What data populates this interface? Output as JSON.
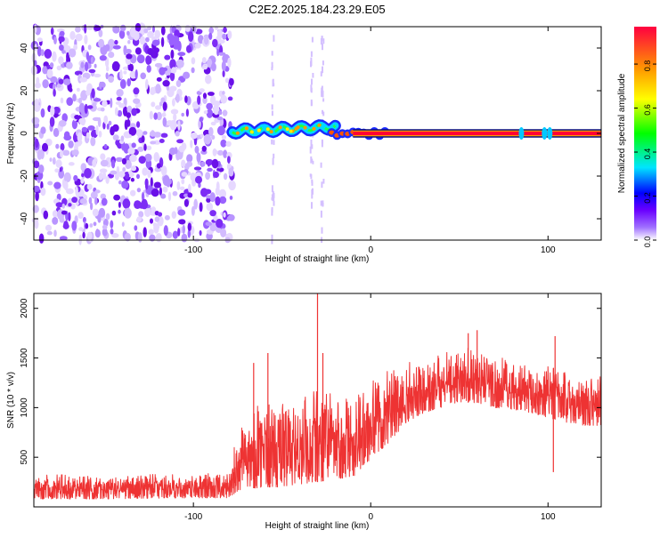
{
  "title": "C2E2.2025.184.23.29.E05",
  "chart_data": [
    {
      "type": "heatmap",
      "xlabel": "Height of straight line (km)",
      "ylabel": "Frequency (Hz)",
      "xlim": [
        -190,
        130
      ],
      "ylim": [
        -50,
        50
      ],
      "x_ticks": [
        -100,
        0,
        100
      ],
      "y_ticks": [
        -40,
        -20,
        0,
        20,
        40
      ],
      "colorbar": {
        "label": "Normalized spectral amplitude",
        "range": [
          0,
          0.97
        ],
        "ticks": [
          0.0,
          0.2,
          0.4,
          0.6,
          0.8
        ],
        "colors": [
          "#ffffff",
          "#7b00ff",
          "#0000ff",
          "#00ffff",
          "#00ff00",
          "#ffff00",
          "#ff8800",
          "#ff0033"
        ]
      },
      "regions": [
        {
          "x_range": [
            -190,
            -78
          ],
          "description": "broadband noise",
          "amplitude_range": [
            0.0,
            0.2
          ]
        },
        {
          "x_range": [
            -78,
            -20
          ],
          "center_frequency": [
            1,
            3
          ],
          "amplitude_range": [
            0.2,
            0.6
          ]
        },
        {
          "x_range": [
            -20,
            130
          ],
          "center_frequency": [
            0,
            0
          ],
          "amplitude_range": [
            0.9,
            0.97
          ]
        }
      ]
    },
    {
      "type": "line",
      "xlabel": "Height of straight line (km)",
      "ylabel": "SNR (10 * v/v)",
      "xlim": [
        -190,
        130
      ],
      "ylim": [
        0,
        2150
      ],
      "x_ticks": [
        -100,
        0,
        100
      ],
      "y_ticks": [
        500,
        1000,
        1500,
        2000
      ],
      "color": "#ee3333",
      "envelope": {
        "x": [
          -190,
          -150,
          -110,
          -80,
          -76,
          -70,
          -60,
          -50,
          -40,
          -30,
          -20,
          -10,
          -5,
          0,
          10,
          20,
          30,
          40,
          50,
          60,
          70,
          80,
          90,
          100,
          110,
          120,
          130
        ],
        "low": [
          80,
          80,
          90,
          90,
          150,
          180,
          200,
          200,
          220,
          250,
          280,
          300,
          400,
          480,
          650,
          850,
          950,
          1000,
          1050,
          1050,
          1000,
          980,
          950,
          900,
          850,
          820,
          820
        ],
        "high": [
          320,
          330,
          330,
          350,
          700,
          1000,
          1100,
          1150,
          1100,
          1250,
          1100,
          1100,
          1200,
          1280,
          1380,
          1450,
          1500,
          1560,
          1600,
          1600,
          1550,
          1500,
          1450,
          1420,
          1350,
          1300,
          1320
        ]
      },
      "peaks": [
        {
          "x": -66,
          "y": 1450
        },
        {
          "x": -58,
          "y": 1550
        },
        {
          "x": -30,
          "y": 2150
        },
        {
          "x": -27,
          "y": 1550
        },
        {
          "x": 55,
          "y": 1750
        },
        {
          "x": 60,
          "y": 1780
        },
        {
          "x": 104,
          "y": 1720
        }
      ],
      "dips": [
        {
          "x": 103,
          "y": 350
        }
      ]
    }
  ]
}
